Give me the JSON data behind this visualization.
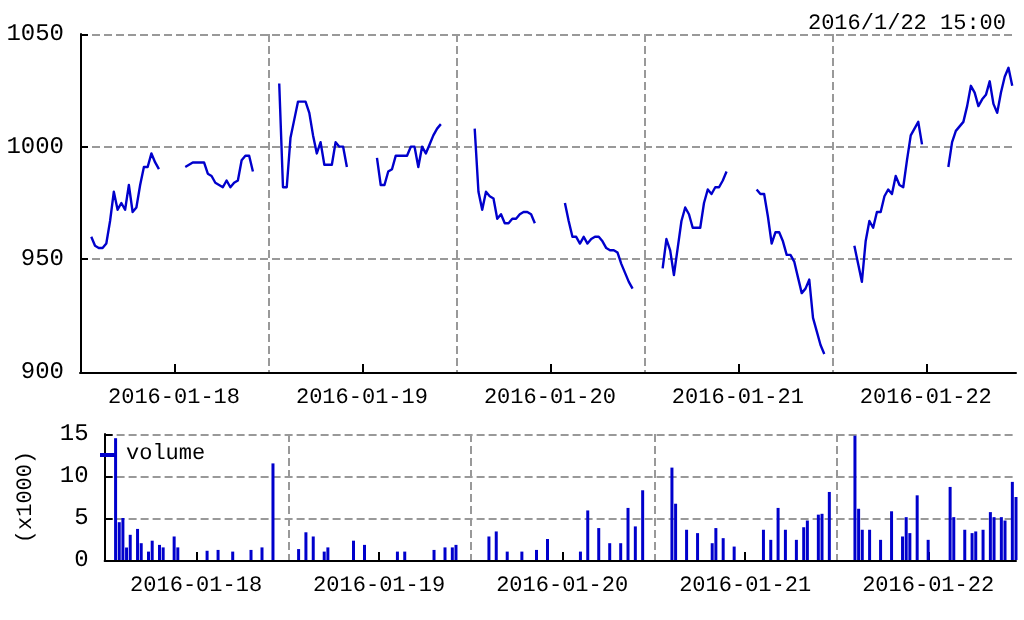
{
  "chart_data": [
    {
      "type": "line",
      "subtitle": "2016/1/22 15:00",
      "categories": [
        null,
        null,
        null,
        null,
        null,
        null,
        null,
        null,
        null,
        null,
        null,
        null,
        null,
        null,
        null,
        null,
        null,
        null,
        null,
        null,
        null,
        null,
        null,
        null,
        null,
        "2016-01-18",
        null,
        null,
        null,
        null,
        null,
        null,
        null,
        null,
        null,
        null,
        null,
        null,
        null,
        null,
        null,
        null,
        null,
        null,
        null,
        null,
        null,
        null,
        null,
        null,
        null,
        null,
        null,
        null,
        null,
        null,
        null,
        null,
        null,
        null,
        null,
        null,
        null,
        null,
        null,
        null,
        null,
        null,
        null,
        null,
        null,
        null,
        null,
        null,
        null,
        "2016-01-19",
        null,
        null,
        null,
        null,
        null,
        null,
        null,
        null,
        null,
        null,
        null,
        null,
        null,
        null,
        null,
        null,
        null,
        null,
        null,
        null,
        null,
        null,
        null,
        null,
        null,
        null,
        null,
        null,
        null,
        null,
        null,
        null,
        null,
        null,
        null,
        null,
        null,
        null,
        null,
        null,
        null,
        null,
        null,
        null,
        null,
        null,
        null,
        null,
        null,
        "2016-01-20",
        null,
        null,
        null,
        null,
        null,
        null,
        null,
        null,
        null,
        null,
        null,
        null,
        null,
        null,
        null,
        null,
        null,
        null,
        null,
        null,
        null,
        null,
        null,
        null,
        null,
        null,
        null,
        null,
        null,
        null,
        null,
        null,
        null,
        null,
        null,
        null,
        null,
        null,
        null,
        null,
        null,
        null,
        null,
        null,
        null,
        null,
        null,
        null,
        null,
        "2016-01-21",
        null,
        null,
        null,
        null,
        null,
        null,
        null,
        null,
        null,
        null,
        null,
        null,
        null,
        null,
        null,
        null,
        null,
        null,
        null,
        null,
        null,
        null,
        null,
        null,
        null,
        null,
        null,
        null,
        null,
        null,
        null,
        null,
        null,
        null,
        null,
        null,
        null,
        null,
        null,
        null,
        null,
        null,
        null,
        null,
        null,
        null,
        null,
        null,
        null,
        "2016-01-22",
        null,
        null,
        null,
        null,
        null,
        null,
        null,
        null,
        null,
        null,
        null,
        null,
        null,
        null,
        null,
        null,
        null,
        null,
        null,
        null,
        null,
        null,
        null,
        null
      ],
      "ylim": [
        900,
        1050
      ],
      "yticks": [
        900,
        950,
        1000,
        1050
      ],
      "grid": true,
      "line_style": "solid",
      "series": [
        {
          "color": "#0000cc",
          "values": [
            null,
            null,
            null,
            960,
            956,
            955,
            955,
            957,
            967,
            980,
            972,
            975,
            972,
            983,
            971,
            973,
            983,
            991,
            991,
            997,
            993,
            990,
            null,
            null,
            null,
            null,
            null,
            null,
            991,
            992,
            993,
            993,
            993,
            993,
            988,
            987,
            984,
            983,
            982,
            985,
            982,
            984,
            985,
            994,
            996,
            996,
            989,
            null,
            null,
            null,
            null,
            null,
            null,
            1028,
            982,
            982,
            1004,
            1012,
            1020,
            1020,
            1020,
            1015,
            1005,
            997,
            1002,
            992,
            992,
            992,
            1002,
            1000,
            1000,
            991,
            null,
            null,
            null,
            null,
            null,
            null,
            null,
            995,
            983,
            983,
            989,
            990,
            996,
            996,
            996,
            996,
            1000,
            1000,
            991,
            1000,
            997,
            1001,
            1005,
            1008,
            1010,
            null,
            null,
            null,
            null,
            null,
            null,
            null,
            null,
            1008,
            980,
            972,
            980,
            978,
            977,
            968,
            970,
            966,
            966,
            968,
            968,
            970,
            971,
            971,
            970,
            966,
            null,
            null,
            null,
            null,
            null,
            null,
            null,
            975,
            967,
            960,
            960,
            957,
            960,
            957,
            959,
            960,
            960,
            958,
            955,
            954,
            954,
            953,
            948,
            944,
            940,
            937,
            null,
            null,
            null,
            null,
            null,
            null,
            null,
            946,
            959,
            954,
            943,
            955,
            967,
            973,
            970,
            964,
            964,
            964,
            975,
            981,
            979,
            982,
            982,
            985,
            989,
            null,
            null,
            null,
            null,
            null,
            null,
            null,
            981,
            979,
            979,
            969,
            957,
            962,
            962,
            958,
            952,
            952,
            949,
            942,
            935,
            937,
            941,
            924,
            918,
            912,
            908,
            null,
            null,
            null,
            null,
            null,
            null,
            null,
            956,
            948,
            940,
            958,
            967,
            964,
            971,
            971,
            978,
            981,
            979,
            987,
            983,
            982,
            994,
            1005,
            1008,
            1011,
            1001,
            null,
            null,
            null,
            null,
            null,
            null,
            991,
            1002,
            1007,
            1009,
            1011,
            1018,
            1027,
            1024,
            1018,
            1021,
            1023,
            1029,
            1019,
            1015,
            1024,
            1031,
            1035,
            1027,
            null
          ]
        }
      ]
    },
    {
      "type": "bar",
      "ylabel": "(x1000)",
      "categories": [
        null,
        null,
        null,
        null,
        null,
        null,
        null,
        null,
        null,
        null,
        null,
        null,
        null,
        null,
        null,
        null,
        null,
        null,
        null,
        null,
        null,
        null,
        null,
        null,
        null,
        "2016-01-18",
        null,
        null,
        null,
        null,
        null,
        null,
        null,
        null,
        null,
        null,
        null,
        null,
        null,
        null,
        null,
        null,
        null,
        null,
        null,
        null,
        null,
        null,
        null,
        null,
        null,
        null,
        null,
        null,
        null,
        null,
        null,
        null,
        null,
        null,
        null,
        null,
        null,
        null,
        null,
        null,
        null,
        null,
        null,
        null,
        null,
        null,
        null,
        null,
        null,
        "2016-01-19",
        null,
        null,
        null,
        null,
        null,
        null,
        null,
        null,
        null,
        null,
        null,
        null,
        null,
        null,
        null,
        null,
        null,
        null,
        null,
        null,
        null,
        null,
        null,
        null,
        null,
        null,
        null,
        null,
        null,
        null,
        null,
        null,
        null,
        null,
        null,
        null,
        null,
        null,
        null,
        null,
        null,
        null,
        null,
        null,
        null,
        null,
        null,
        null,
        null,
        "2016-01-20",
        null,
        null,
        null,
        null,
        null,
        null,
        null,
        null,
        null,
        null,
        null,
        null,
        null,
        null,
        null,
        null,
        null,
        null,
        null,
        null,
        null,
        null,
        null,
        null,
        null,
        null,
        null,
        null,
        null,
        null,
        null,
        null,
        null,
        null,
        null,
        null,
        null,
        null,
        null,
        null,
        null,
        null,
        null,
        null,
        null,
        null,
        null,
        null,
        null,
        "2016-01-21",
        null,
        null,
        null,
        null,
        null,
        null,
        null,
        null,
        null,
        null,
        null,
        null,
        null,
        null,
        null,
        null,
        null,
        null,
        null,
        null,
        null,
        null,
        null,
        null,
        null,
        null,
        null,
        null,
        null,
        null,
        null,
        null,
        null,
        null,
        null,
        null,
        null,
        null,
        null,
        null,
        null,
        null,
        null,
        null,
        null,
        null,
        null,
        null,
        null,
        "2016-01-22",
        null,
        null,
        null,
        null,
        null,
        null,
        null,
        null,
        null,
        null,
        null,
        null,
        null,
        null,
        null,
        null,
        null,
        null,
        null,
        null,
        null,
        null,
        null,
        null
      ],
      "ylim": [
        0,
        15
      ],
      "yticks": [
        0,
        5,
        10,
        15
      ],
      "grid": true,
      "legend": "top left",
      "series": [
        {
          "name": "volume",
          "color": "#0000cc",
          "values": [
            null,
            null,
            null,
            14.5,
            4.5,
            5,
            1.5,
            3,
            null,
            3.7,
            2,
            null,
            1,
            2.3,
            null,
            1.8,
            1.5,
            null,
            null,
            2.8,
            1.5,
            null,
            null,
            null,
            null,
            null,
            null,
            null,
            1.1,
            null,
            null,
            1.2,
            null,
            null,
            null,
            1,
            null,
            null,
            null,
            null,
            1.2,
            null,
            null,
            1.5,
            null,
            null,
            11.5,
            null,
            null,
            null,
            null,
            null,
            null,
            1.3,
            null,
            3.3,
            null,
            2.8,
            null,
            null,
            1,
            1.5,
            null,
            null,
            null,
            null,
            null,
            null,
            2.3,
            null,
            null,
            1.8,
            null,
            null,
            null,
            null,
            null,
            null,
            null,
            null,
            1,
            null,
            1,
            null,
            null,
            null,
            null,
            null,
            null,
            null,
            1.2,
            null,
            null,
            1.5,
            null,
            1.5,
            1.8,
            null,
            null,
            null,
            null,
            null,
            null,
            null,
            null,
            2.8,
            null,
            3.4,
            null,
            null,
            1,
            null,
            null,
            null,
            1,
            null,
            null,
            null,
            1.2,
            null,
            null,
            2.5,
            null,
            null,
            null,
            null,
            null,
            null,
            null,
            null,
            1,
            null,
            5.9,
            null,
            null,
            3.8,
            null,
            null,
            2,
            null,
            null,
            2,
            null,
            6.2,
            null,
            4,
            null,
            8.3,
            null,
            null,
            null,
            null,
            null,
            null,
            null,
            11,
            6.7,
            null,
            null,
            3.6,
            null,
            null,
            3.2,
            null,
            null,
            null,
            2,
            3.8,
            null,
            2.6,
            null,
            null,
            1.6,
            null,
            null,
            null,
            null,
            null,
            null,
            null,
            3.6,
            null,
            2.4,
            null,
            6.2,
            null,
            3.6,
            null,
            null,
            2.4,
            null,
            3.9,
            4.7,
            null,
            null,
            5.4,
            5.5,
            null,
            8.1,
            null,
            null,
            null,
            null,
            null,
            null,
            14.8,
            6.1,
            3.6,
            null,
            3.6,
            null,
            null,
            2.4,
            null,
            null,
            5.8,
            null,
            null,
            2.8,
            5.1,
            3.2,
            null,
            7.7,
            null,
            null,
            2.4,
            null,
            null,
            null,
            null,
            null,
            8.7,
            5.1,
            null,
            null,
            3.6,
            null,
            3.2,
            3.4,
            null,
            3.6,
            null,
            5.7,
            5.1,
            null,
            5.1,
            4.7,
            null,
            9.3,
            7.5
          ]
        }
      ]
    }
  ]
}
